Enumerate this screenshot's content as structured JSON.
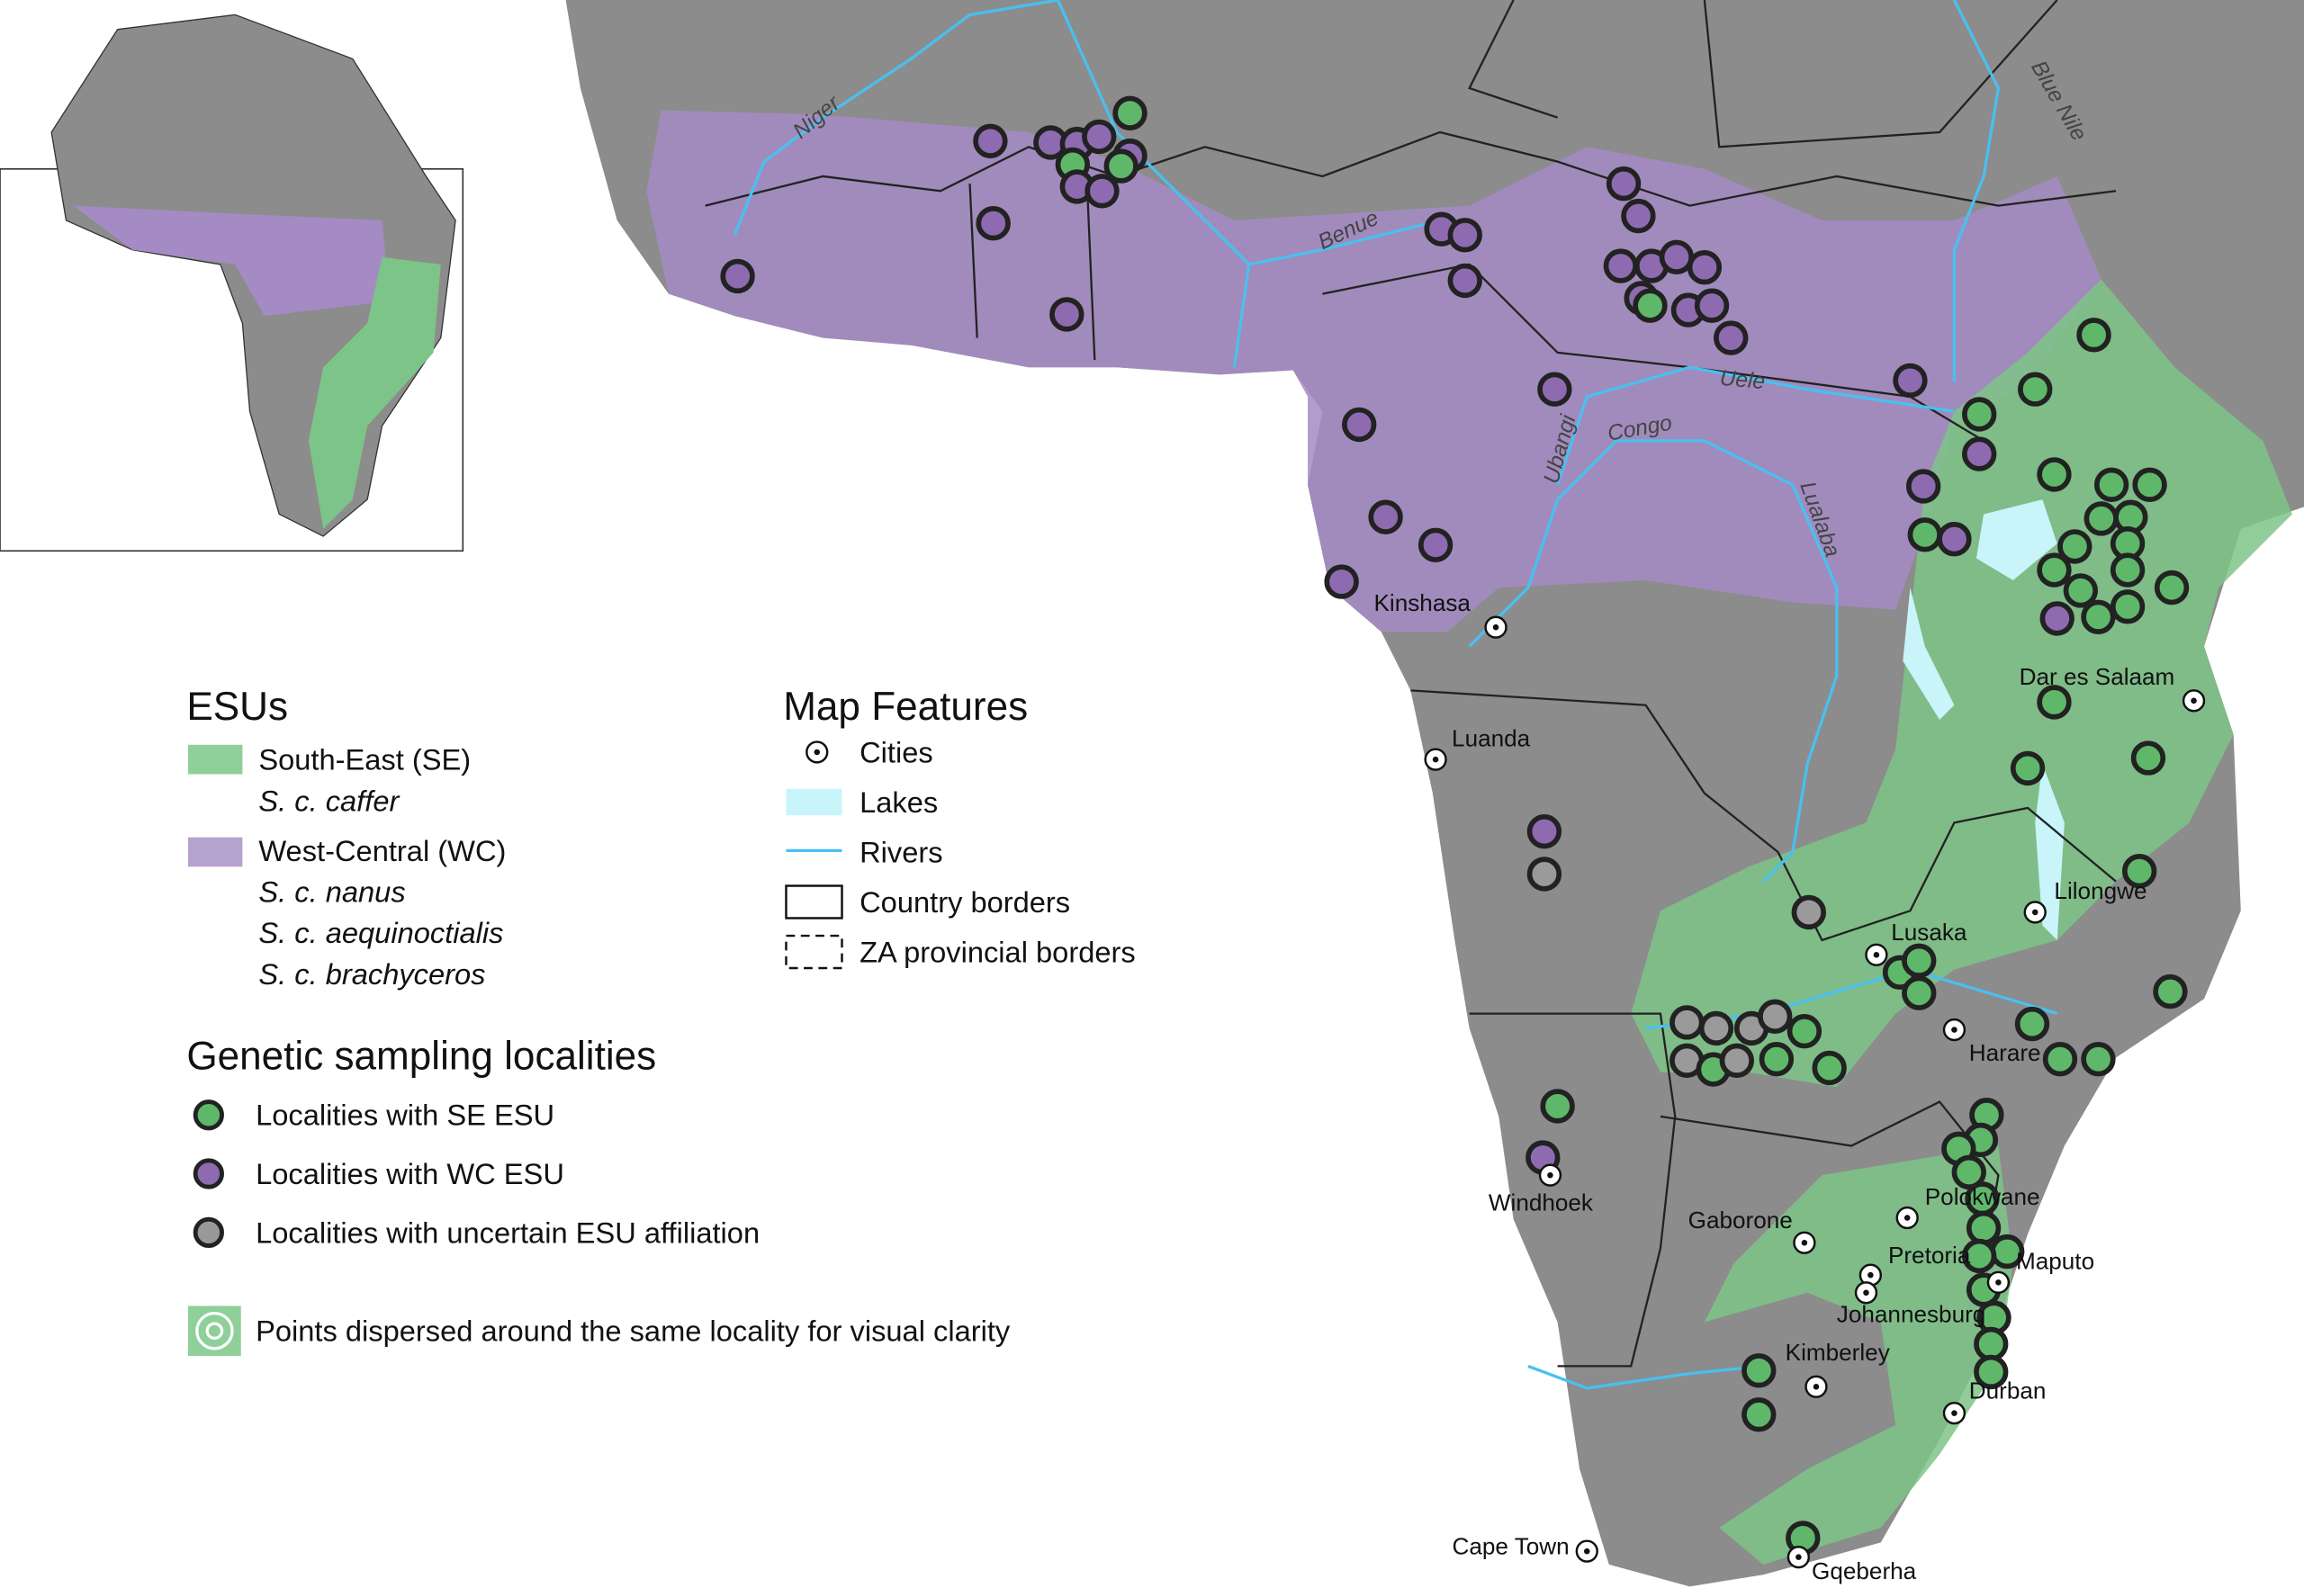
{
  "legend": {
    "esus": {
      "title": "ESUs",
      "items": [
        {
          "label": "South-East (SE)",
          "subspecies": [
            "S. c. caffer"
          ]
        },
        {
          "label": "West-Central (WC)",
          "subspecies": [
            "S. c. nanus",
            "S. c. aequinoctialis",
            "S. c. brachyceros"
          ]
        }
      ]
    },
    "sampling": {
      "title": "Genetic sampling localities",
      "items": [
        "Localities with SE ESU",
        "Localities with WC ESU",
        "Localities with uncertain ESU affiliation"
      ]
    },
    "dispersed_note": "Points dispersed around the same locality for visual clarity"
  },
  "map_features": {
    "title": "Map Features",
    "items": [
      "Cities",
      "Lakes",
      "Rivers",
      "Country borders",
      "ZA provincial borders"
    ]
  },
  "map": {
    "cities": [
      "Kinshasa",
      "Luanda",
      "Dar es Salaam",
      "Lilongwe",
      "Lusaka",
      "Harare",
      "Windhoek",
      "Gaborone",
      "Polokwane",
      "Pretoria",
      "Maputo",
      "Johannesburg",
      "Kimberley",
      "Durban",
      "Cape Town",
      "Gqeberha"
    ],
    "rivers": [
      "Niger",
      "Benue",
      "Uele",
      "Ubangi",
      "Congo",
      "Lualaba",
      "Blue Nile"
    ]
  }
}
